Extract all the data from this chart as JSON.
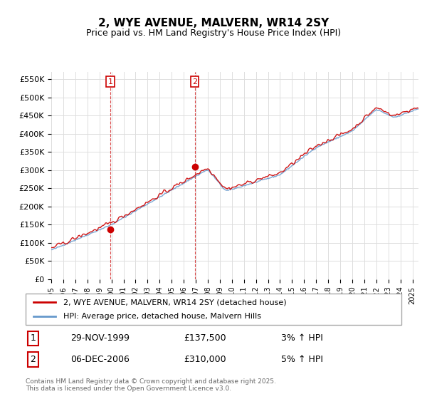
{
  "title": "2, WYE AVENUE, MALVERN, WR14 2SY",
  "subtitle": "Price paid vs. HM Land Registry's House Price Index (HPI)",
  "ylabel_ticks": [
    "£0",
    "£50K",
    "£100K",
    "£150K",
    "£200K",
    "£250K",
    "£300K",
    "£350K",
    "£400K",
    "£450K",
    "£500K",
    "£550K"
  ],
  "ytick_values": [
    0,
    50000,
    100000,
    150000,
    200000,
    250000,
    300000,
    350000,
    400000,
    450000,
    500000,
    550000
  ],
  "ylim": [
    0,
    570000
  ],
  "xlim_start": 1995.0,
  "xlim_end": 2025.5,
  "xticks": [
    1995,
    1996,
    1997,
    1998,
    1999,
    2000,
    2001,
    2002,
    2003,
    2004,
    2005,
    2006,
    2007,
    2008,
    2009,
    2010,
    2011,
    2012,
    2013,
    2014,
    2015,
    2016,
    2017,
    2018,
    2019,
    2020,
    2021,
    2022,
    2023,
    2024,
    2025
  ],
  "sale1_x": 1999.91,
  "sale1_y": 137500,
  "sale1_label": "1",
  "sale2_x": 2006.92,
  "sale2_y": 310000,
  "sale2_label": "2",
  "legend_house": "2, WYE AVENUE, MALVERN, WR14 2SY (detached house)",
  "legend_hpi": "HPI: Average price, detached house, Malvern Hills",
  "ann1_box": "1",
  "ann1_date": "29-NOV-1999",
  "ann1_price": "£137,500",
  "ann1_hpi": "3% ↑ HPI",
  "ann2_box": "2",
  "ann2_date": "06-DEC-2006",
  "ann2_price": "£310,000",
  "ann2_hpi": "5% ↑ HPI",
  "footer": "Contains HM Land Registry data © Crown copyright and database right 2025.\nThis data is licensed under the Open Government Licence v3.0.",
  "line_color_house": "#cc0000",
  "line_color_hpi": "#6699cc",
  "bg_color": "#ffffff",
  "grid_color": "#dddddd",
  "annotation_box_color": "#cc0000"
}
